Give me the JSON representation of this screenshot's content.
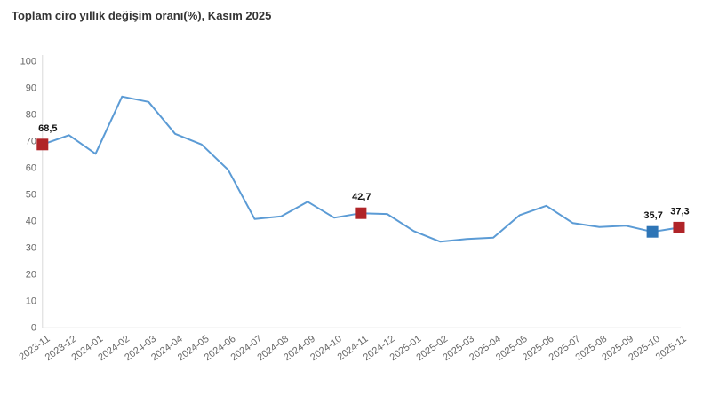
{
  "title": "Toplam ciro yıllık değişim oranı(%), Kasım 2025",
  "chart_data": {
    "type": "line",
    "title": "Toplam ciro yıllık değişim oranı(%), Kasım 2025",
    "x": [
      "2023-11",
      "2023-12",
      "2024-01",
      "2024-02",
      "2024-03",
      "2024-04",
      "2024-05",
      "2024-06",
      "2024-07",
      "2024-08",
      "2024-09",
      "2024-10",
      "2024-11",
      "2024-12",
      "2025-01",
      "2025-02",
      "2025-03",
      "2025-04",
      "2025-05",
      "2025-06",
      "2025-07",
      "2025-08",
      "2025-09",
      "2025-10",
      "2025-11"
    ],
    "series": [
      {
        "name": "Toplam ciro yıllık değişim oranı (%)",
        "values": [
          68.5,
          72.0,
          65.0,
          86.5,
          84.5,
          72.5,
          68.5,
          59.0,
          40.5,
          41.5,
          47.0,
          41.0,
          42.7,
          42.4,
          36.0,
          32.0,
          33.0,
          33.5,
          42.0,
          45.5,
          39.0,
          37.5,
          38.0,
          35.7,
          37.3
        ]
      }
    ],
    "ylim": [
      0,
      100
    ],
    "ytick_step": 10,
    "grid": false,
    "legend": "none",
    "labeled_points": [
      {
        "x": "2023-11",
        "label": "68,5",
        "marker_color": "#b02428"
      },
      {
        "x": "2024-11",
        "label": "42,7",
        "marker_color": "#b02428"
      },
      {
        "x": "2025-10",
        "label": "35,7",
        "marker_color": "#2e75b6"
      },
      {
        "x": "2025-11",
        "label": "37,3",
        "marker_color": "#b02428"
      }
    ],
    "colors": {
      "line": "#5b9bd5",
      "marker_red": "#b02428",
      "marker_blue": "#2e75b6",
      "axis": "#d9d9d9",
      "tick_label": "#666666",
      "point_label": "#111111",
      "title": "#333333",
      "background": "#ffffff"
    }
  }
}
